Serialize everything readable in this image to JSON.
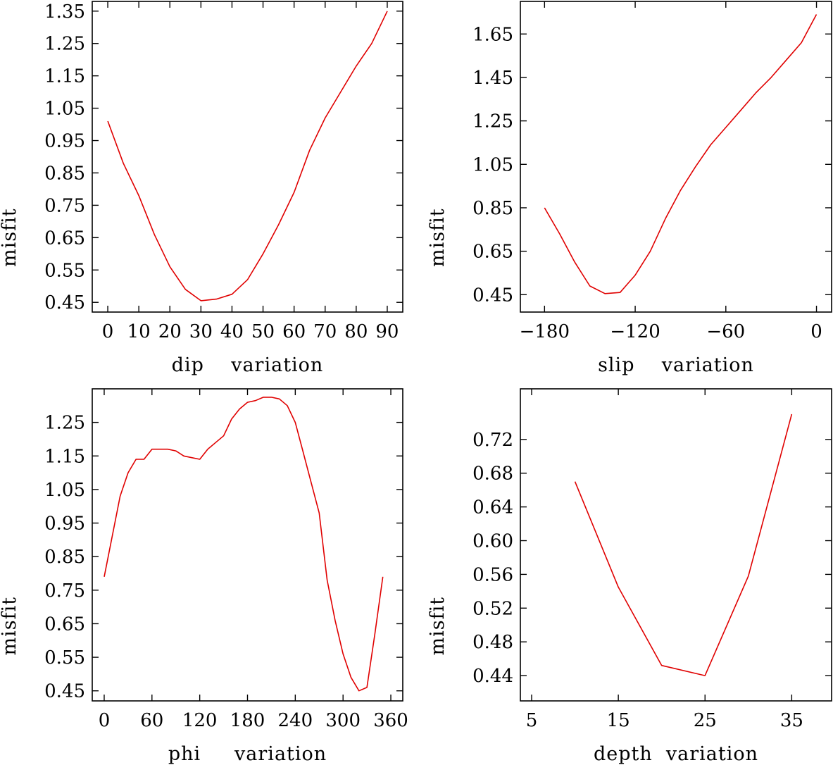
{
  "chart_data": [
    {
      "type": "line",
      "xlabel": "dip    variation",
      "ylabel": "misfit",
      "xlim": [
        -5,
        95
      ],
      "ylim": [
        0.42,
        1.38
      ],
      "xticks": [
        0,
        10,
        20,
        30,
        40,
        50,
        60,
        70,
        80,
        90
      ],
      "xtick_labels": [
        "0",
        "10",
        "20",
        "30",
        "40",
        "50",
        "60",
        "70",
        "80",
        "90"
      ],
      "yticks": [
        0.45,
        0.55,
        0.65,
        0.75,
        0.85,
        0.95,
        1.05,
        1.15,
        1.25,
        1.35
      ],
      "ytick_labels": [
        "0.45",
        "0.55",
        "0.65",
        "0.75",
        "0.85",
        "0.95",
        "1.05",
        "1.15",
        "1.25",
        "1.35"
      ],
      "series": [
        {
          "x": [
            0,
            5,
            10,
            15,
            20,
            25,
            30,
            35,
            40,
            45,
            50,
            55,
            60,
            65,
            70,
            75,
            80,
            85,
            90
          ],
          "y": [
            1.01,
            0.88,
            0.78,
            0.66,
            0.56,
            0.49,
            0.455,
            0.46,
            0.475,
            0.52,
            0.6,
            0.69,
            0.79,
            0.92,
            1.02,
            1.1,
            1.18,
            1.25,
            1.35
          ]
        }
      ]
    },
    {
      "type": "line",
      "xlabel": "slip    variation",
      "ylabel": "misfit",
      "xlim": [
        -196,
        10
      ],
      "ylim": [
        0.37,
        1.8
      ],
      "xticks": [
        -180,
        -120,
        -60,
        0
      ],
      "xtick_labels": [
        "−180",
        "−120",
        "−60",
        "0"
      ],
      "yticks": [
        0.45,
        0.65,
        0.85,
        1.05,
        1.25,
        1.45,
        1.65
      ],
      "ytick_labels": [
        "0.45",
        "0.65",
        "0.85",
        "1.05",
        "1.25",
        "1.45",
        "1.65"
      ],
      "series": [
        {
          "x": [
            -180,
            -170,
            -160,
            -150,
            -140,
            -130,
            -120,
            -110,
            -100,
            -90,
            -80,
            -70,
            -60,
            -50,
            -40,
            -30,
            -20,
            -10,
            0
          ],
          "y": [
            0.85,
            0.73,
            0.6,
            0.49,
            0.455,
            0.46,
            0.54,
            0.65,
            0.8,
            0.93,
            1.04,
            1.14,
            1.22,
            1.3,
            1.38,
            1.45,
            1.53,
            1.61,
            1.74
          ]
        }
      ]
    },
    {
      "type": "line",
      "xlabel": "phi     variation",
      "ylabel": "misfit",
      "xlim": [
        -15,
        375
      ],
      "ylim": [
        0.42,
        1.35
      ],
      "xticks": [
        0,
        60,
        120,
        180,
        240,
        300,
        360
      ],
      "xtick_labels": [
        "0",
        "60",
        "120",
        "180",
        "240",
        "300",
        "360"
      ],
      "yticks": [
        0.45,
        0.55,
        0.65,
        0.75,
        0.85,
        0.95,
        1.05,
        1.15,
        1.25
      ],
      "ytick_labels": [
        "0.45",
        "0.55",
        "0.65",
        "0.75",
        "0.85",
        "0.95",
        "1.05",
        "1.15",
        "1.25"
      ],
      "series": [
        {
          "x": [
            0,
            10,
            20,
            30,
            40,
            50,
            60,
            70,
            80,
            90,
            100,
            110,
            120,
            130,
            140,
            150,
            160,
            170,
            180,
            190,
            200,
            210,
            220,
            230,
            240,
            250,
            260,
            270,
            280,
            290,
            300,
            310,
            320,
            330,
            340,
            350
          ],
          "y": [
            0.79,
            0.91,
            1.03,
            1.1,
            1.14,
            1.14,
            1.17,
            1.17,
            1.17,
            1.165,
            1.15,
            1.145,
            1.14,
            1.17,
            1.19,
            1.21,
            1.26,
            1.29,
            1.31,
            1.315,
            1.325,
            1.325,
            1.32,
            1.3,
            1.25,
            1.16,
            1.07,
            0.98,
            0.78,
            0.66,
            0.56,
            0.49,
            0.45,
            0.46,
            0.62,
            0.79
          ]
        }
      ]
    },
    {
      "type": "line",
      "xlabel": "depth  variation",
      "ylabel": "misfit",
      "xlim": [
        3.7,
        39.6
      ],
      "ylim": [
        0.41,
        0.78
      ],
      "xticks": [
        5,
        15,
        25,
        35
      ],
      "xtick_labels": [
        "5",
        "15",
        "25",
        "35"
      ],
      "yticks": [
        0.44,
        0.48,
        0.52,
        0.56,
        0.6,
        0.64,
        0.68,
        0.72
      ],
      "ytick_labels": [
        "0.44",
        "0.48",
        "0.52",
        "0.56",
        "0.60",
        "0.64",
        "0.68",
        "0.72"
      ],
      "series": [
        {
          "x": [
            10,
            15,
            20,
            25,
            30,
            35
          ],
          "y": [
            0.67,
            0.545,
            0.452,
            0.44,
            0.558,
            0.75
          ]
        }
      ]
    }
  ]
}
